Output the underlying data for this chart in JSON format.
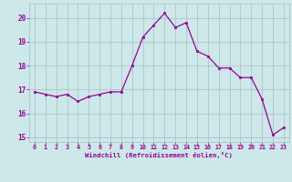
{
  "x": [
    0,
    1,
    2,
    3,
    4,
    5,
    6,
    7,
    8,
    9,
    10,
    11,
    12,
    13,
    14,
    15,
    16,
    17,
    18,
    19,
    20,
    21,
    22,
    23
  ],
  "y": [
    16.9,
    16.8,
    16.7,
    16.8,
    16.5,
    16.7,
    16.8,
    16.9,
    16.9,
    18.0,
    19.2,
    19.7,
    20.2,
    19.6,
    19.8,
    18.6,
    18.4,
    17.9,
    17.9,
    17.5,
    17.5,
    16.6,
    15.1,
    15.4
  ],
  "line_color": "#990099",
  "marker_color": "#990099",
  "bg_color": "#cce8e8",
  "grid_color": "#aabbcc",
  "xlabel": "Windchill (Refroidissement éolien,°C)",
  "tick_color": "#990099",
  "ylim": [
    14.8,
    20.6
  ],
  "yticks": [
    15,
    16,
    17,
    18,
    19,
    20
  ],
  "xlim": [
    -0.5,
    23.5
  ],
  "xticks": [
    0,
    1,
    2,
    3,
    4,
    5,
    6,
    7,
    8,
    9,
    10,
    11,
    12,
    13,
    14,
    15,
    16,
    17,
    18,
    19,
    20,
    21,
    22,
    23
  ],
  "xtick_labels": [
    "0",
    "1",
    "2",
    "3",
    "4",
    "5",
    "6",
    "7",
    "8",
    "9",
    "10",
    "11",
    "12",
    "13",
    "14",
    "15",
    "16",
    "17",
    "18",
    "19",
    "20",
    "21",
    "22",
    "23"
  ]
}
